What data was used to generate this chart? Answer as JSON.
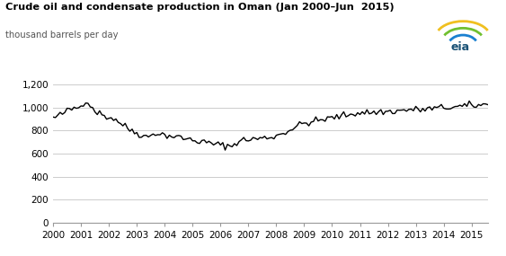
{
  "title": "Crude oil and condensate production in Oman (Jan 2000–Jun  2015)",
  "ylabel": "thousand barrels per day",
  "ylim": [
    0,
    1200
  ],
  "yticks": [
    0,
    200,
    400,
    600,
    800,
    1000,
    1200
  ],
  "ytick_labels": [
    "0",
    "200",
    "400",
    "600",
    "800",
    "1,000",
    "1,200"
  ],
  "line_color": "#000000",
  "line_width": 1.0,
  "background_color": "#ffffff",
  "grid_color": "#cccccc",
  "base_values": [
    910,
    915,
    925,
    935,
    945,
    960,
    970,
    980,
    985,
    995,
    1000,
    1005,
    1010,
    1040,
    1065,
    1045,
    1020,
    995,
    975,
    960,
    950,
    940,
    930,
    920,
    915,
    910,
    905,
    895,
    880,
    865,
    850,
    835,
    820,
    810,
    800,
    790,
    780,
    770,
    762,
    755,
    748,
    742,
    760,
    775,
    780,
    775,
    770,
    765,
    762,
    758,
    755,
    750,
    748,
    745,
    742,
    738,
    734,
    730,
    726,
    722,
    718,
    714,
    710,
    706,
    702,
    698,
    695,
    692,
    688,
    685,
    682,
    678,
    675,
    672,
    670,
    668,
    666,
    664,
    685,
    700,
    708,
    714,
    718,
    720,
    722,
    724,
    726,
    728,
    730,
    732,
    734,
    736,
    738,
    740,
    745,
    750,
    755,
    762,
    770,
    778,
    788,
    798,
    808,
    818,
    828,
    838,
    848,
    858,
    862,
    866,
    870,
    874,
    878,
    882,
    886,
    890,
    894,
    898,
    902,
    906,
    910,
    914,
    918,
    922,
    926,
    930,
    934,
    938,
    942,
    946,
    950,
    954,
    955,
    956,
    957,
    958,
    957,
    956,
    957,
    958,
    960,
    962,
    963,
    964,
    964,
    965,
    966,
    968,
    970,
    972,
    974,
    976,
    978,
    980,
    982,
    983,
    982,
    981,
    980,
    982,
    984,
    986,
    988,
    990,
    992,
    994,
    996,
    998,
    998,
    999,
    1000,
    1001,
    1002,
    1004,
    1006,
    1008,
    1010,
    1012,
    1014,
    1016,
    1016,
    1017,
    1018,
    1019,
    1020,
    1022,
    1024,
    1026,
    1028,
    1030,
    1032,
    1034,
    1032,
    1030,
    1032,
    1034,
    1036,
    1038,
    1040,
    1042,
    1044,
    1046,
    1048,
    1050,
    1048,
    1046,
    1048,
    1050,
    1052,
    1054,
    1048,
    1046,
    1048,
    1050,
    1052,
    1054,
    1052,
    1050,
    1052,
    1054
  ],
  "noise_seed": 42,
  "noise_scale": 15,
  "x_start_year": 2000,
  "xtick_years": [
    2000,
    2001,
    2002,
    2003,
    2004,
    2005,
    2006,
    2007,
    2008,
    2009,
    2010,
    2011,
    2012,
    2013,
    2014,
    2015
  ]
}
